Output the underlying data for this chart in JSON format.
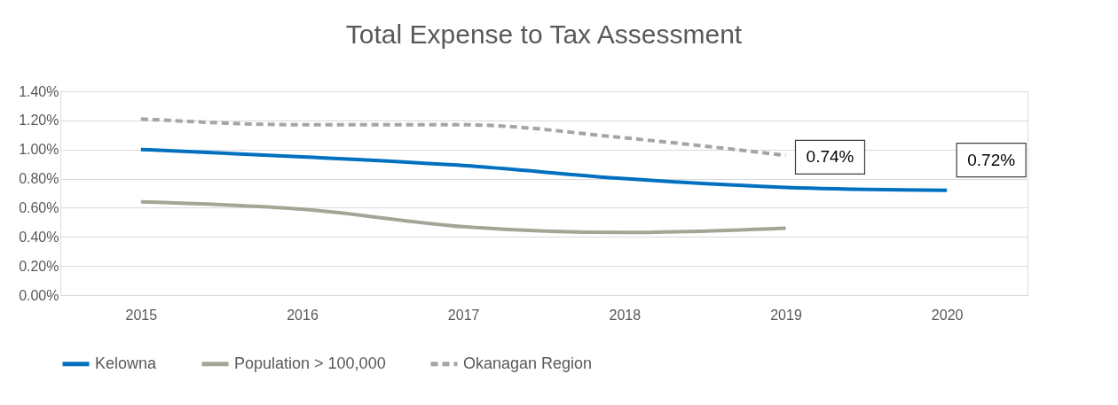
{
  "chart_data": {
    "type": "line",
    "title": "Total Expense to Tax Assessment",
    "categories": [
      "2015",
      "2016",
      "2017",
      "2018",
      "2019",
      "2020"
    ],
    "series": [
      {
        "name": "Kelowna",
        "color": "#0070c0",
        "line_style": "solid",
        "values": [
          1.0,
          0.95,
          0.89,
          0.8,
          0.74,
          0.72
        ],
        "value_labels": [
          null,
          null,
          null,
          null,
          "0.74%",
          "0.72%"
        ]
      },
      {
        "name": "Population > 100,000",
        "color": "#a5a595",
        "line_style": "solid",
        "values": [
          0.64,
          0.59,
          0.47,
          0.43,
          0.46,
          null
        ]
      },
      {
        "name": "Okanagan Region",
        "color": "#a5a5a5",
        "line_style": "dashed",
        "values": [
          1.21,
          1.17,
          1.17,
          1.08,
          0.96,
          null
        ]
      }
    ],
    "ylim": [
      0,
      1.4
    ],
    "yticks": [
      {
        "value": 0,
        "label": "0.00%"
      },
      {
        "value": 0.2,
        "label": "0.20%"
      },
      {
        "value": 0.4,
        "label": "0.40%"
      },
      {
        "value": 0.6,
        "label": "0.60%"
      },
      {
        "value": 0.8,
        "label": "0.80%"
      },
      {
        "value": 1.0,
        "label": "1.00%"
      },
      {
        "value": 1.2,
        "label": "1.20%"
      },
      {
        "value": 1.4,
        "label": "1.40%"
      }
    ],
    "grid": "y",
    "legend": "bottom",
    "marker": "none"
  }
}
